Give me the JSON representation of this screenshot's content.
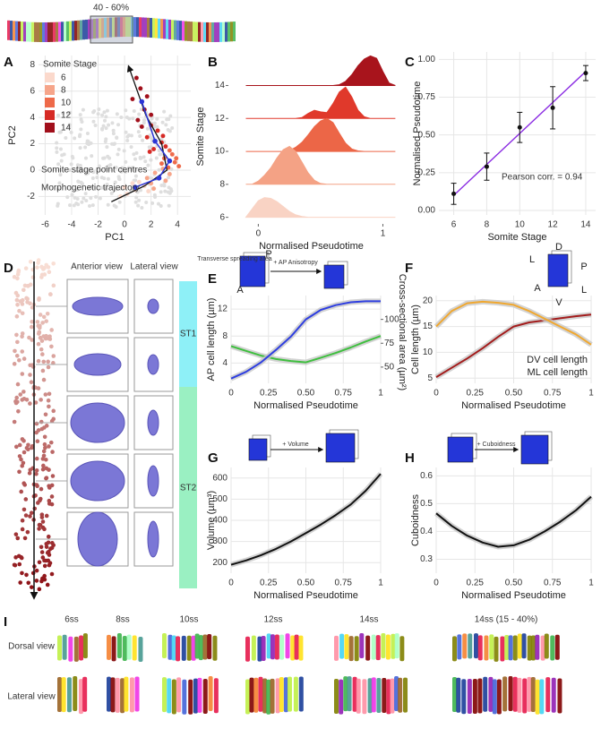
{
  "figure": {
    "strip_label": "40 - 60%",
    "panel_d": {
      "panel": "D",
      "headers": [
        "Anterior view",
        "Lateral view"
      ],
      "groups": [
        "ST1",
        "ST2"
      ]
    },
    "panel_i": {
      "panel": "I",
      "columns": [
        "6ss",
        "8ss",
        "10ss",
        "12ss",
        "14ss",
        "14ss (15 - 40%)"
      ],
      "rows": [
        "Dorsal view",
        "Lateral view"
      ]
    }
  },
  "chart_data": [
    {
      "type": "scatter",
      "panel": "A",
      "xlabel": "PC1",
      "ylabel": "PC2",
      "xlim": [
        -6.5,
        5
      ],
      "ylim": [
        -3.4,
        8.7
      ],
      "xticks": [
        -6,
        -4,
        -2,
        0,
        2,
        4
      ],
      "yticks": [
        -2,
        0,
        2,
        4,
        6,
        8
      ],
      "grid": true,
      "legend_title": "Somite Stage",
      "legend": "top-left",
      "series": [
        {
          "name": "6",
          "color": "#fbd9cc",
          "x": [
            0.2,
            0.8,
            1.5,
            -0.3,
            1.1,
            0.6,
            1.8,
            0.0
          ],
          "y": [
            -1.8,
            -1.5,
            -1.2,
            -2.0,
            -0.9,
            -1.0,
            -1.6,
            -1.3
          ]
        },
        {
          "name": "8",
          "color": "#f6a58a",
          "x": [
            2.0,
            2.6,
            3.1,
            2.3,
            1.7,
            2.9,
            3.4,
            2.2
          ],
          "y": [
            -1.0,
            -0.6,
            -0.8,
            -0.2,
            -0.6,
            0.1,
            -0.3,
            -1.4
          ]
        },
        {
          "name": "10",
          "color": "#ee6a4a",
          "x": [
            3.3,
            3.8,
            3.0,
            3.6,
            4.1,
            2.8,
            3.4,
            3.9
          ],
          "y": [
            0.2,
            0.6,
            0.9,
            1.2,
            0.3,
            0.5,
            1.5,
            0.9
          ]
        },
        {
          "name": "12",
          "color": "#d62a25",
          "x": [
            2.2,
            2.8,
            1.7,
            3.1,
            2.5,
            1.9,
            2.0,
            2.9
          ],
          "y": [
            1.6,
            2.1,
            2.5,
            1.8,
            3.0,
            1.4,
            3.4,
            2.6
          ]
        },
        {
          "name": "14",
          "color": "#a10f1b",
          "x": [
            1.0,
            1.5,
            0.6,
            2.0,
            1.2,
            0.9,
            1.7,
            1.3
          ],
          "y": [
            3.8,
            4.6,
            5.4,
            4.2,
            6.2,
            7.0,
            5.6,
            3.3
          ]
        }
      ],
      "centres": {
        "name": "Somite stage point centres",
        "color": "#2b35d6",
        "x": [
          0.8,
          2.6,
          3.4,
          2.3,
          1.3
        ],
        "y": [
          -1.3,
          -0.6,
          0.7,
          2.2,
          5.2
        ]
      },
      "trajectory": {
        "name": "Morphogenetic trajectory",
        "color": "#111111",
        "x": [
          -1.0,
          1.5,
          3.2,
          2.8,
          1.6,
          0.3
        ],
        "y": [
          -2.4,
          -1.2,
          0.0,
          2.0,
          4.2,
          7.9
        ]
      }
    },
    {
      "type": "ridgeline",
      "panel": "B",
      "xlabel": "Normalised Pseudotime",
      "ylabel": "Somite Stage",
      "xlim": [
        -0.24,
        1.09
      ],
      "ylim": [
        5.6,
        16.2
      ],
      "xticks": [
        0,
        1
      ],
      "yticks": [
        6,
        8,
        10,
        12,
        14
      ],
      "x": [
        -0.1,
        -0.05,
        0,
        0.05,
        0.1,
        0.15,
        0.2,
        0.25,
        0.3,
        0.35,
        0.4,
        0.45,
        0.5,
        0.55,
        0.6,
        0.65,
        0.7,
        0.75,
        0.8,
        0.85,
        0.9,
        0.95,
        1,
        1.05,
        1.1
      ],
      "series": [
        {
          "stage": 6,
          "color": "#f9d3c4",
          "values": [
            0,
            0.5,
            1.0,
            1.2,
            1.15,
            0.95,
            0.65,
            0.35,
            0.15,
            0.05,
            0,
            0,
            0,
            0,
            0,
            0,
            0,
            0,
            0,
            0,
            0,
            0,
            0,
            0,
            0
          ]
        },
        {
          "stage": 8,
          "color": "#f4a285",
          "values": [
            0,
            0,
            0.2,
            0.55,
            1.0,
            1.6,
            2.1,
            2.3,
            2.0,
            1.35,
            0.7,
            0.25,
            0.05,
            0,
            0,
            0,
            0,
            0,
            0,
            0,
            0,
            0,
            0,
            0,
            0
          ]
        },
        {
          "stage": 10,
          "color": "#ec6647",
          "values": [
            0,
            0,
            0,
            0,
            0,
            0,
            0,
            0.05,
            0.25,
            0.55,
            1.0,
            1.5,
            1.85,
            2.0,
            1.75,
            1.1,
            0.5,
            0.15,
            0.03,
            0,
            0,
            0,
            0,
            0,
            0
          ]
        },
        {
          "stage": 12,
          "color": "#e0392b",
          "values": [
            0,
            0,
            0,
            0,
            0,
            0,
            0,
            0,
            0,
            0.05,
            0.3,
            0.5,
            0.4,
            0.35,
            0.9,
            1.6,
            1.9,
            1.3,
            0.5,
            0.1,
            0,
            0,
            0,
            0,
            0
          ]
        },
        {
          "stage": 14,
          "color": "#a8141c",
          "values": [
            0,
            0,
            0,
            0,
            0,
            0,
            0,
            0,
            0,
            0,
            0,
            0,
            0,
            0,
            0,
            0.05,
            0.25,
            0.65,
            1.2,
            1.6,
            1.8,
            1.65,
            0.85,
            0.15,
            0
          ]
        }
      ]
    },
    {
      "type": "errorbar",
      "panel": "C",
      "xlabel": "Somite Stage",
      "ylabel": "Normalised Pseudotime",
      "annotation": "Pearson corr. = 0.94",
      "xlim": [
        5.1,
        14.6
      ],
      "ylim": [
        -0.03,
        1.05
      ],
      "xticks": [
        6,
        8,
        10,
        12,
        14
      ],
      "yticks": [
        {
          "value": 0,
          "label": "0.00"
        },
        0.25,
        {
          "value": 0.5,
          "label": "0.50"
        },
        0.75,
        {
          "value": 1,
          "label": "1.00"
        }
      ],
      "grid": true,
      "x": [
        6,
        8,
        10,
        12,
        14
      ],
      "values": [
        0.11,
        0.29,
        0.55,
        0.68,
        0.91
      ],
      "errors": [
        0.07,
        0.09,
        0.1,
        0.14,
        0.05
      ],
      "color": "#111111",
      "fit": {
        "color": "#8a2be2",
        "x": [
          6,
          14
        ],
        "y": [
          0.1,
          0.92
        ]
      }
    },
    {
      "type": "line",
      "panel": "E",
      "xlabel": "Normalised Pseudotime",
      "ylabel": "AP cell length (µm)",
      "y2label": "Cross-sectional area (µm²)",
      "xlim": [
        0,
        1
      ],
      "ylim": [
        1,
        14
      ],
      "xticks": [
        0,
        0.25,
        {
          "value": 0.5,
          "label": "0.50"
        },
        0.75,
        1
      ],
      "yticks": [
        4,
        8,
        12
      ],
      "y2lim": [
        33,
        125
      ],
      "y2ticks": [
        50,
        75,
        100
      ],
      "grid": true,
      "inset_labels": [
        "Transverse spreading area",
        "P",
        "A",
        "+ AP Anisotropy"
      ],
      "x": [
        0,
        0.1,
        0.2,
        0.3,
        0.4,
        0.5,
        0.6,
        0.7,
        0.8,
        0.9,
        1
      ],
      "series": [
        {
          "color": "#3fbf3f",
          "values": [
            6.5,
            5.8,
            5.1,
            4.6,
            4.3,
            4.1,
            4.8,
            5.5,
            6.3,
            7.2,
            8.0
          ]
        },
        {
          "color": "#2f3fe0",
          "axis": "y2",
          "values": [
            38,
            45,
            55,
            68,
            82,
            100,
            110,
            115,
            118,
            119,
            119
          ]
        }
      ]
    },
    {
      "type": "line",
      "panel": "F",
      "xlabel": "Normalised Pseudotime",
      "ylabel": "Cell length (µm)",
      "xlim": [
        0,
        1
      ],
      "ylim": [
        4,
        21
      ],
      "xticks": [
        0,
        0.25,
        {
          "value": 0.5,
          "label": "0.50"
        },
        0.75,
        1
      ],
      "yticks": [
        5,
        10,
        15,
        20
      ],
      "grid": true,
      "legend": "bottom-right",
      "inset_labels": [
        "D",
        "P",
        "A",
        "L",
        "L",
        "V"
      ],
      "x": [
        0,
        0.1,
        0.2,
        0.3,
        0.4,
        0.5,
        0.6,
        0.7,
        0.8,
        0.9,
        1
      ],
      "series": [
        {
          "name": "DV cell length",
          "color": "#a31c1c",
          "values": [
            5.2,
            7.0,
            8.8,
            10.8,
            13.0,
            15.0,
            15.8,
            16.2,
            16.6,
            17.0,
            17.3
          ]
        },
        {
          "name": "ML cell length",
          "color": "#f0a830",
          "values": [
            15.0,
            18.0,
            19.5,
            19.8,
            19.6,
            19.2,
            18.0,
            16.5,
            15.0,
            13.5,
            11.5
          ]
        }
      ]
    },
    {
      "type": "line",
      "panel": "G",
      "xlabel": "Normalised Pseudotime",
      "ylabel": "Volume (µm³)",
      "xlim": [
        0,
        1
      ],
      "ylim": [
        150,
        650
      ],
      "xticks": [
        0,
        0.25,
        {
          "value": 0.5,
          "label": "0.50"
        },
        0.75,
        1
      ],
      "yticks": [
        200,
        300,
        400,
        500,
        600
      ],
      "grid": true,
      "inset_labels": [
        "+ Volume"
      ],
      "x": [
        0,
        0.1,
        0.2,
        0.3,
        0.4,
        0.5,
        0.6,
        0.7,
        0.8,
        0.9,
        1
      ],
      "series": [
        {
          "color": "#111111",
          "values": [
            190,
            210,
            235,
            265,
            300,
            340,
            380,
            425,
            475,
            540,
            620
          ]
        }
      ]
    },
    {
      "type": "line",
      "panel": "H",
      "xlabel": "Normalised Pseudotime",
      "ylabel": "Cuboidness",
      "xlim": [
        0,
        1
      ],
      "ylim": [
        0.25,
        0.63
      ],
      "xticks": [
        0,
        0.25,
        {
          "value": 0.5,
          "label": "0.50"
        },
        0.75,
        1
      ],
      "yticks": [
        0.3,
        0.4,
        0.5,
        0.6
      ],
      "grid": true,
      "inset_labels": [
        "+ Cuboidness"
      ],
      "x": [
        0,
        0.1,
        0.2,
        0.3,
        0.4,
        0.5,
        0.6,
        0.7,
        0.8,
        0.9,
        1
      ],
      "series": [
        {
          "color": "#111111",
          "values": [
            0.465,
            0.42,
            0.385,
            0.36,
            0.345,
            0.35,
            0.37,
            0.4,
            0.435,
            0.475,
            0.525
          ]
        }
      ]
    }
  ]
}
